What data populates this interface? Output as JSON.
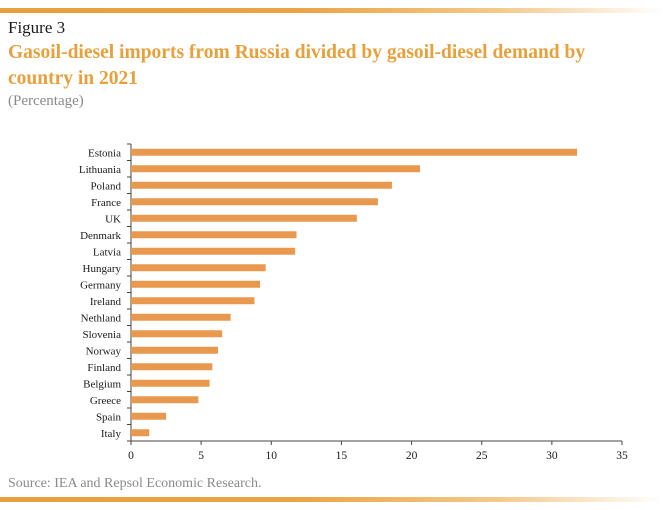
{
  "figure_label": "Figure 3",
  "title": "Gasoil-diesel imports from Russia divided by gasoil-diesel demand by country in 2021",
  "subtitle": "(Percentage)",
  "source": "Source: IEA and Repsol Economic Research.",
  "colors": {
    "accent": "#e8a03c",
    "bar": "#e8994e"
  },
  "chart_data": {
    "type": "bar",
    "orientation": "horizontal",
    "categories": [
      "Estonia",
      "Lithuania",
      "Poland",
      "France",
      "UK",
      "Denmark",
      "Latvia",
      "Hungary",
      "Germany",
      "Ireland",
      "Nethland",
      "Slovenia",
      "Norway",
      "Finland",
      "Belgium",
      "Greece",
      "Spain",
      "Italy"
    ],
    "values": [
      31.8,
      20.6,
      18.6,
      17.6,
      16.1,
      11.8,
      11.7,
      9.6,
      9.2,
      8.8,
      7.1,
      6.5,
      6.2,
      5.8,
      5.6,
      4.8,
      2.5,
      1.3
    ],
    "xlim": [
      0,
      35
    ],
    "xticks": [
      0,
      5,
      10,
      15,
      20,
      25,
      30,
      35
    ],
    "grid": false,
    "legend": "none"
  }
}
